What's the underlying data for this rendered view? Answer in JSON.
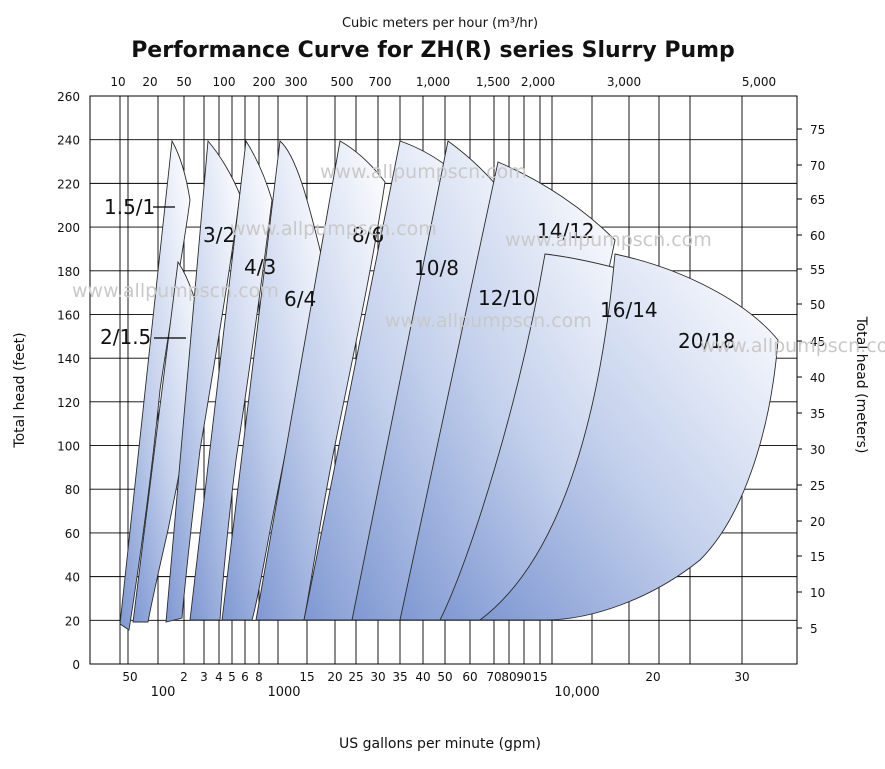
{
  "chart_data": {
    "type": "area",
    "title": "Performance Curve for ZH(R) series Slurry Pump",
    "top_axis_label": "Cubic meters per hour (m³/hr)",
    "top_ticks": [
      "10",
      "20",
      "50",
      "100",
      "200",
      "300",
      "500",
      "700",
      "1,000",
      "1,500",
      "2,000",
      "3,000",
      "5,000"
    ],
    "xlabel": "US gallons per minute (gpm)",
    "bottom_ticks_small": [
      "50",
      "2",
      "3",
      "4",
      "5",
      "6",
      "8",
      "15",
      "20",
      "25",
      "30",
      "35",
      "40",
      "50",
      "60",
      "70",
      "80",
      "90",
      "15",
      "20",
      "30"
    ],
    "bottom_ticks_big": [
      "100",
      "1000",
      "10,000"
    ],
    "ylabel_left": "Total head (feet)",
    "left_ticks": [
      "260",
      "240",
      "220",
      "200",
      "180",
      "160",
      "140",
      "120",
      "100",
      "80",
      "60",
      "40",
      "20",
      "0"
    ],
    "ylim_feet": [
      0,
      260
    ],
    "ylabel_right": "Total head (meters)",
    "right_ticks": [
      "75",
      "70",
      "65",
      "60",
      "55",
      "50",
      "45",
      "40",
      "35",
      "30",
      "25",
      "20",
      "15",
      "10",
      "5"
    ],
    "x_scale": "log",
    "grid": true,
    "series": [
      {
        "name": "1.5/1",
        "head_min_ft": 17,
        "head_max_ft": 240
      },
      {
        "name": "2/1.5",
        "head_min_ft": 20,
        "head_max_ft": 185
      },
      {
        "name": "3/2",
        "head_min_ft": 20,
        "head_max_ft": 240
      },
      {
        "name": "4/3",
        "head_min_ft": 20,
        "head_max_ft": 240
      },
      {
        "name": "6/4",
        "head_min_ft": 20,
        "head_max_ft": 240
      },
      {
        "name": "8/6",
        "head_min_ft": 20,
        "head_max_ft": 240
      },
      {
        "name": "10/8",
        "head_min_ft": 20,
        "head_max_ft": 240
      },
      {
        "name": "12/10",
        "head_min_ft": 20,
        "head_max_ft": 240
      },
      {
        "name": "14/12",
        "head_min_ft": 20,
        "head_max_ft": 240
      },
      {
        "name": "16/14",
        "head_min_ft": 20,
        "head_max_ft": 200
      },
      {
        "name": "20/18",
        "head_min_ft": 20,
        "head_max_ft": 180
      }
    ],
    "watermark": "www.allpumpscn.com"
  }
}
